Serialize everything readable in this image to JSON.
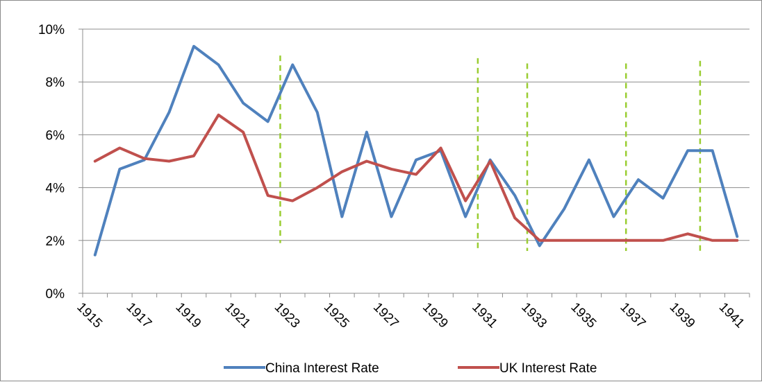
{
  "chart_data": {
    "type": "line",
    "title": "",
    "xlabel": "",
    "ylabel": "",
    "x": [
      1915,
      1916,
      1917,
      1918,
      1919,
      1920,
      1921,
      1922,
      1923,
      1924,
      1925,
      1926,
      1927,
      1928,
      1929,
      1930,
      1931,
      1932,
      1933,
      1934,
      1935,
      1936,
      1937,
      1938,
      1939,
      1940,
      1941
    ],
    "x_tick_labels": [
      "1915",
      "1917",
      "1919",
      "1921",
      "1923",
      "1925",
      "1927",
      "1929",
      "1931",
      "1933",
      "1935",
      "1937",
      "1939",
      "1941"
    ],
    "y_tick_labels": [
      "0%",
      "2%",
      "4%",
      "6%",
      "8%",
      "10%"
    ],
    "ylim": [
      0,
      10
    ],
    "grid": "horizontal",
    "legend_position": "bottom",
    "series": [
      {
        "name": "China Interest Rate",
        "color": "#4F81BD",
        "values": [
          1.45,
          4.7,
          5.05,
          6.85,
          9.35,
          8.65,
          7.2,
          6.5,
          8.65,
          6.85,
          2.9,
          6.1,
          2.9,
          5.05,
          5.4,
          2.9,
          5.05,
          3.7,
          1.8,
          3.2,
          5.05,
          2.9,
          4.3,
          3.6,
          5.4,
          5.4,
          2.15
        ]
      },
      {
        "name": "UK Interest Rate",
        "color": "#C0504D",
        "values": [
          5.0,
          5.5,
          5.1,
          5.0,
          5.2,
          6.75,
          6.1,
          3.7,
          3.5,
          4.0,
          4.6,
          5.0,
          4.7,
          4.5,
          5.5,
          3.5,
          5.0,
          2.85,
          2.0,
          2.0,
          2.0,
          2.0,
          2.0,
          2.0,
          2.25,
          2.0,
          2.0
        ]
      }
    ],
    "markers": {
      "style": "dashed vertical line",
      "color": "#9ACD32",
      "x": [
        1922.5,
        1930.5,
        1932.5,
        1936.5,
        1939.5
      ],
      "y_range": [
        [
          1.9,
          9.0
        ],
        [
          1.7,
          8.9
        ],
        [
          1.6,
          8.7
        ],
        [
          1.6,
          8.7
        ],
        [
          1.6,
          8.8
        ]
      ]
    }
  }
}
